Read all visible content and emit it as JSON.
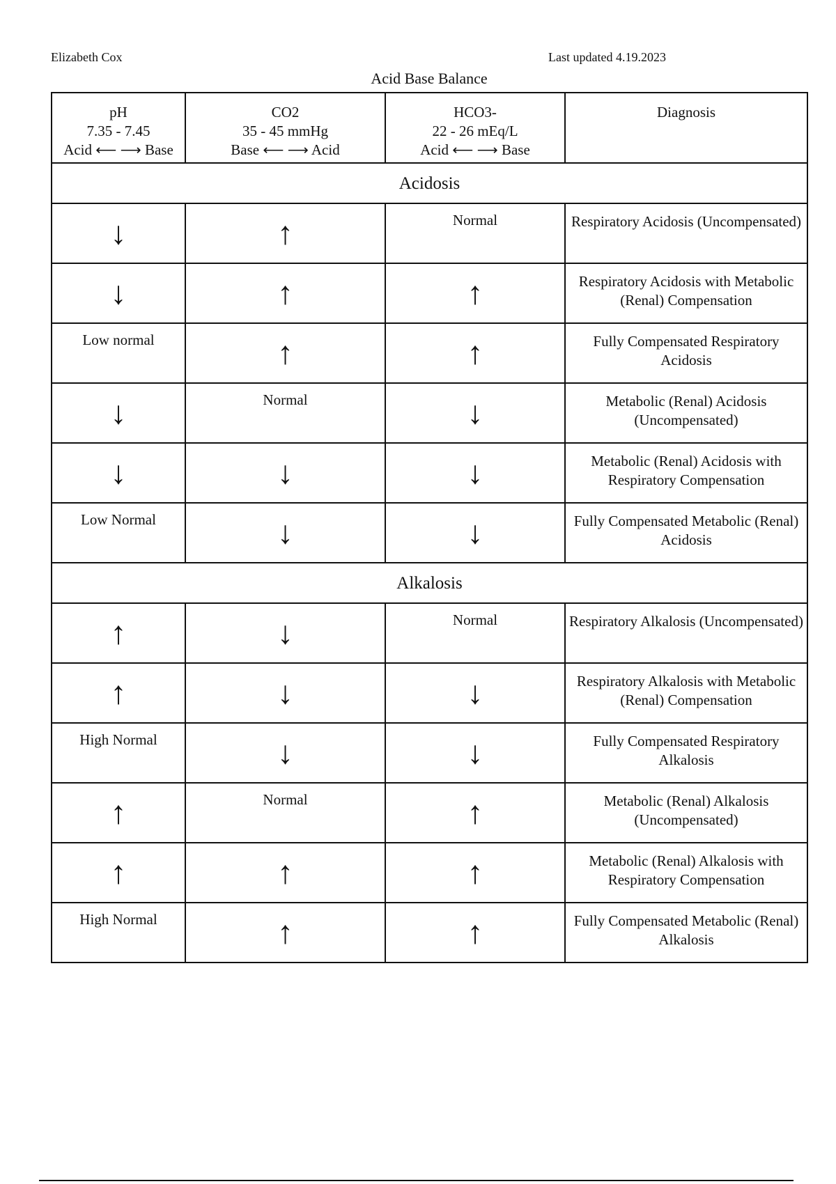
{
  "header": {
    "author": "Elizabeth Cox",
    "updated": "Last updated 4.19.2023",
    "title": "Acid Base Balance"
  },
  "columns": [
    {
      "name": "pH",
      "range": "7.35 - 7.45",
      "direction": "Acid ⟵ ⟶ Base"
    },
    {
      "name": "CO2",
      "range": "35 - 45 mmHg",
      "direction": "Base ⟵ ⟶ Acid"
    },
    {
      "name": "HCO3-",
      "range": "22 - 26 mEq/L",
      "direction": "Acid ⟵ ⟶ Base"
    },
    {
      "name": "Diagnosis",
      "range": "",
      "direction": ""
    }
  ],
  "sections": [
    {
      "title": "Acidosis",
      "rows": [
        {
          "ph": "↓",
          "co2": "↑",
          "hco3": "Normal",
          "diagnosis": "Respiratory Acidosis (Uncompensated)"
        },
        {
          "ph": "↓",
          "co2": "↑",
          "hco3": "↑",
          "diagnosis": "Respiratory Acidosis with Metabolic (Renal) Compensation"
        },
        {
          "ph": "Low normal",
          "co2": "↑",
          "hco3": "↑",
          "diagnosis": "Fully Compensated Respiratory Acidosis"
        },
        {
          "ph": "↓",
          "co2": "Normal",
          "hco3": "↓",
          "diagnosis": "Metabolic (Renal) Acidosis (Uncompensated)"
        },
        {
          "ph": "↓",
          "co2": "↓",
          "hco3": "↓",
          "diagnosis": "Metabolic (Renal) Acidosis with Respiratory Compensation"
        },
        {
          "ph": "Low Normal",
          "co2": "↓",
          "hco3": "↓",
          "diagnosis": "Fully Compensated Metabolic (Renal) Acidosis"
        }
      ]
    },
    {
      "title": "Alkalosis",
      "rows": [
        {
          "ph": "↑",
          "co2": "↓",
          "hco3": "Normal",
          "diagnosis": "Respiratory Alkalosis (Uncompensated)"
        },
        {
          "ph": "↑",
          "co2": "↓",
          "hco3": "↓",
          "diagnosis": "Respiratory Alkalosis with Metabolic (Renal) Compensation"
        },
        {
          "ph": "High Normal",
          "co2": "↓",
          "hco3": "↓",
          "diagnosis": "Fully Compensated Respiratory Alkalosis"
        },
        {
          "ph": "↑",
          "co2": "Normal",
          "hco3": "↑",
          "diagnosis": "Metabolic (Renal) Alkalosis (Uncompensated)"
        },
        {
          "ph": "↑",
          "co2": "↑",
          "hco3": "↑",
          "diagnosis": "Metabolic (Renal) Alkalosis with Respiratory Compensation"
        },
        {
          "ph": "High Normal",
          "co2": "↑",
          "hco3": "↑",
          "diagnosis": "Fully Compensated Metabolic (Renal) Alkalosis"
        }
      ]
    }
  ]
}
